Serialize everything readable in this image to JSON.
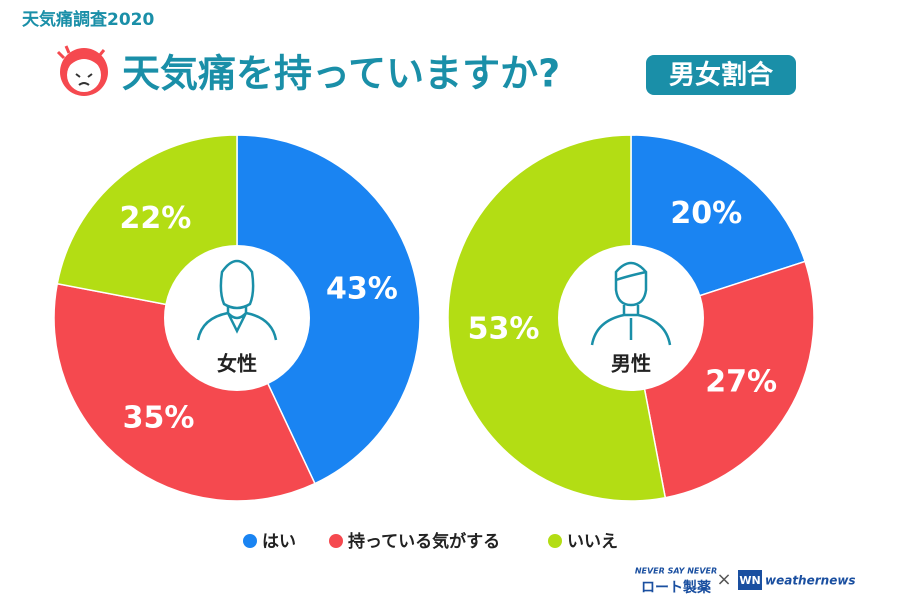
{
  "header": {
    "subtitle": "天気痛調査2020",
    "title": "天気痛を持っていますか?",
    "badge": "男女割合"
  },
  "chart_data": [
    {
      "type": "pie",
      "title": "女性",
      "categories": [
        "はい",
        "持っている気がする",
        "いいえ"
      ],
      "values": [
        43,
        35,
        22
      ],
      "value_labels": [
        "43%",
        "35%",
        "22%"
      ],
      "colors": [
        "#1a84f2",
        "#f5494f",
        "#b3dd14"
      ]
    },
    {
      "type": "pie",
      "title": "男性",
      "categories": [
        "はい",
        "持っている気がする",
        "いいえ"
      ],
      "values": [
        20,
        27,
        53
      ],
      "value_labels": [
        "20%",
        "27%",
        "53%"
      ],
      "colors": [
        "#1a84f2",
        "#f5494f",
        "#b3dd14"
      ]
    }
  ],
  "footer": {
    "slogan": "NEVER SAY NEVER",
    "brand": "ロート製薬",
    "separator": "×",
    "logo_mark": "WN",
    "partner": "weathernews"
  }
}
